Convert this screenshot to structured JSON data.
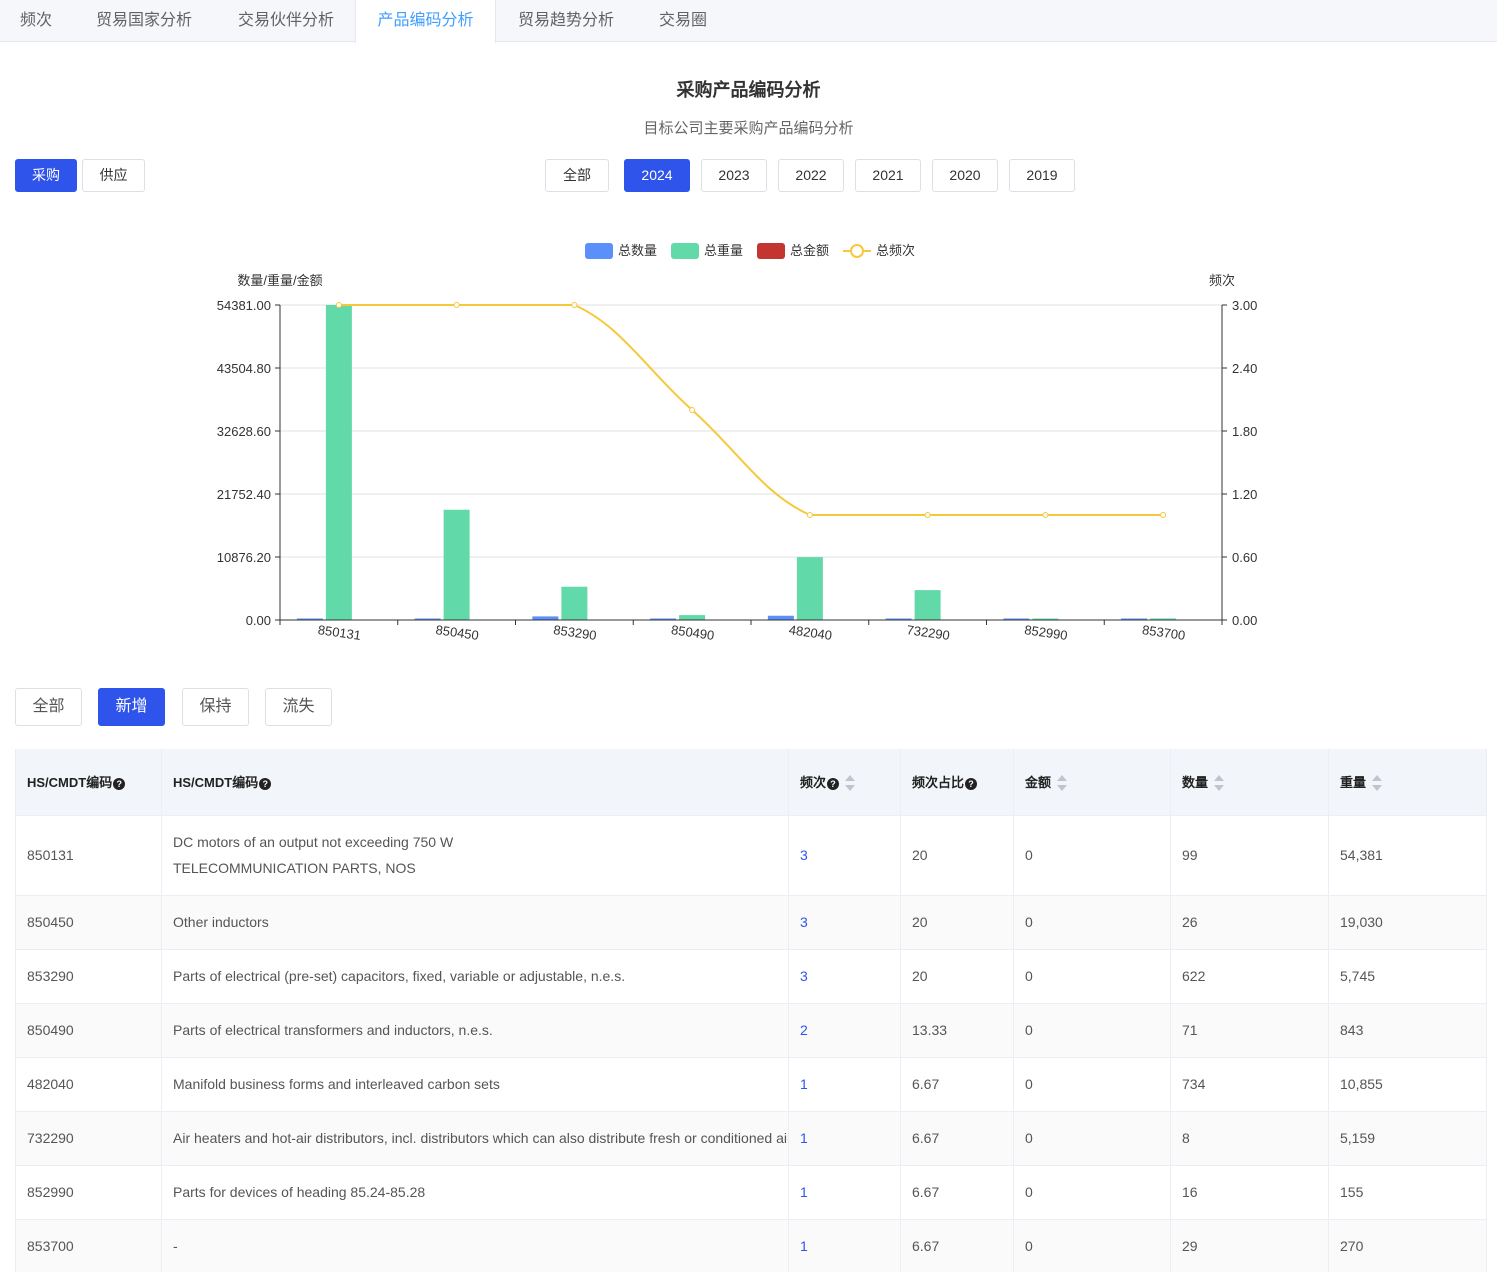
{
  "tabs": [
    {
      "label": "频次"
    },
    {
      "label": "贸易国家分析"
    },
    {
      "label": "交易伙伴分析"
    },
    {
      "label": "产品编码分析"
    },
    {
      "label": "贸易趋势分析"
    },
    {
      "label": "交易圈"
    }
  ],
  "header": {
    "title": "采购产品编码分析",
    "subtitle": "目标公司主要采购产品编码分析"
  },
  "mode_buttons": {
    "buy": "采购",
    "supply": "供应"
  },
  "year_buttons": [
    "全部",
    "2024",
    "2023",
    "2022",
    "2021",
    "2020",
    "2019"
  ],
  "filter_buttons": [
    "全部",
    "新增",
    "保持",
    "流失"
  ],
  "colors": {
    "qty": "#5b8ff9",
    "weight": "#61d9a8",
    "amount": "#c23531",
    "freq": "#f7c83c",
    "primary": "#2f54eb"
  },
  "chart_data": {
    "type": "bar",
    "legend": [
      "总数量",
      "总重量",
      "总金额",
      "总频次"
    ],
    "y_left_label": "数量/重量/金额",
    "y_right_label": "频次",
    "y_left_ticks": [
      "0.00",
      "10876.20",
      "21752.40",
      "32628.60",
      "43504.80",
      "54381.00"
    ],
    "y_right_ticks": [
      "0.00",
      "0.60",
      "1.20",
      "1.80",
      "2.40",
      "3.00"
    ],
    "ylim_left": [
      0,
      54381
    ],
    "ylim_right": [
      0,
      3
    ],
    "categories": [
      "850131",
      "850450",
      "853290",
      "850490",
      "482040",
      "732290",
      "852990",
      "853700"
    ],
    "series": [
      {
        "name": "总数量",
        "type": "bar",
        "values": [
          99,
          26,
          622,
          71,
          734,
          8,
          16,
          29
        ]
      },
      {
        "name": "总重量",
        "type": "bar",
        "values": [
          54381,
          19030,
          5745,
          843,
          10855,
          5159,
          155,
          270
        ]
      },
      {
        "name": "总金额",
        "type": "bar",
        "values": [
          0,
          0,
          0,
          0,
          0,
          0,
          0,
          0
        ]
      },
      {
        "name": "总频次",
        "type": "line",
        "values": [
          3,
          3,
          3,
          2,
          1,
          1,
          1,
          1
        ]
      }
    ]
  },
  "table": {
    "headers": [
      "HS/CMDT编码",
      "HS/CMDT编码",
      "频次",
      "频次占比",
      "金额",
      "数量",
      "重量"
    ],
    "rows": [
      {
        "code": "850131",
        "desc": "DC motors of an output not exceeding 750 W",
        "desc2": "TELECOMMUNICATION PARTS, NOS",
        "freq": "3",
        "ratio": "20",
        "amount": "0",
        "qty": "99",
        "weight": "54,381"
      },
      {
        "code": "850450",
        "desc": "Other inductors",
        "desc2": "",
        "freq": "3",
        "ratio": "20",
        "amount": "0",
        "qty": "26",
        "weight": "19,030"
      },
      {
        "code": "853290",
        "desc": "Parts of electrical (pre-set) capacitors, fixed, variable or adjustable, n.e.s.",
        "desc2": "",
        "freq": "3",
        "ratio": "20",
        "amount": "0",
        "qty": "622",
        "weight": "5,745"
      },
      {
        "code": "850490",
        "desc": "Parts of electrical transformers and inductors, n.e.s.",
        "desc2": "",
        "freq": "2",
        "ratio": "13.33",
        "amount": "0",
        "qty": "71",
        "weight": "843"
      },
      {
        "code": "482040",
        "desc": "Manifold business forms and interleaved carbon sets",
        "desc2": "",
        "freq": "1",
        "ratio": "6.67",
        "amount": "0",
        "qty": "734",
        "weight": "10,855"
      },
      {
        "code": "732290",
        "desc": "Air heaters and hot-air distributors, incl. distributors which can also distribute fresh or conditioned air, no",
        "desc2": "",
        "freq": "1",
        "ratio": "6.67",
        "amount": "0",
        "qty": "8",
        "weight": "5,159"
      },
      {
        "code": "852990",
        "desc": "Parts for devices of heading 85.24-85.28",
        "desc2": "",
        "freq": "1",
        "ratio": "6.67",
        "amount": "0",
        "qty": "16",
        "weight": "155"
      },
      {
        "code": "853700",
        "desc": "-",
        "desc2": "",
        "freq": "1",
        "ratio": "6.67",
        "amount": "0",
        "qty": "29",
        "weight": "270"
      }
    ]
  }
}
